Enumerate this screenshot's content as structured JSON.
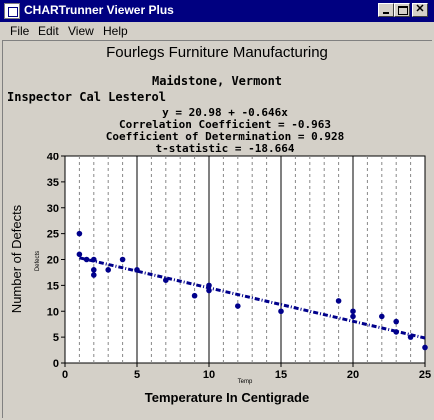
{
  "window": {
    "title": "CHARTrunner Viewer Plus"
  },
  "menu": {
    "file": "File",
    "edit": "Edit",
    "view": "View",
    "help": "Help"
  },
  "header": {
    "company": "Fourlegs Furniture Manufacturing",
    "location": "Maidstone, Vermont",
    "inspector": "Inspector  Cal Lesterol",
    "equation": "y = 20.98 + -0.646x",
    "correlation": "Correlation Coefficient = -0.963",
    "determination": "Coefficient of Determination = 0.928",
    "tstat": "t-statistic = -18.664"
  },
  "colors": {
    "titlebar": "#000080",
    "points": "#00008b",
    "window_bg": "#d4d0c8"
  },
  "chart_data": {
    "type": "scatter",
    "ylabel": "Number of Defects",
    "ylabel_small": "Defects",
    "xlabel": "Temperature In Centigrade",
    "xlabel_small": "Temp",
    "xlim": [
      0,
      25
    ],
    "ylim": [
      0,
      40
    ],
    "x_ticks": [
      0,
      5,
      10,
      15,
      20,
      25
    ],
    "y_ticks": [
      0,
      5,
      10,
      15,
      20,
      25,
      30,
      35,
      40
    ],
    "points": [
      [
        1,
        25
      ],
      [
        1,
        21
      ],
      [
        1.5,
        20
      ],
      [
        2,
        20
      ],
      [
        2,
        18
      ],
      [
        2,
        17
      ],
      [
        3,
        18
      ],
      [
        4,
        20
      ],
      [
        5,
        18
      ],
      [
        7,
        16
      ],
      [
        9,
        13
      ],
      [
        10,
        15
      ],
      [
        10,
        14
      ],
      [
        12,
        11
      ],
      [
        15,
        10
      ],
      [
        19,
        12
      ],
      [
        20,
        10
      ],
      [
        20,
        9
      ],
      [
        22,
        9
      ],
      [
        23,
        8
      ],
      [
        23,
        6
      ],
      [
        24,
        5
      ],
      [
        25,
        3
      ]
    ],
    "regression": {
      "intercept": 20.98,
      "slope": -0.646,
      "x_start": 1,
      "x_end": 25
    }
  }
}
